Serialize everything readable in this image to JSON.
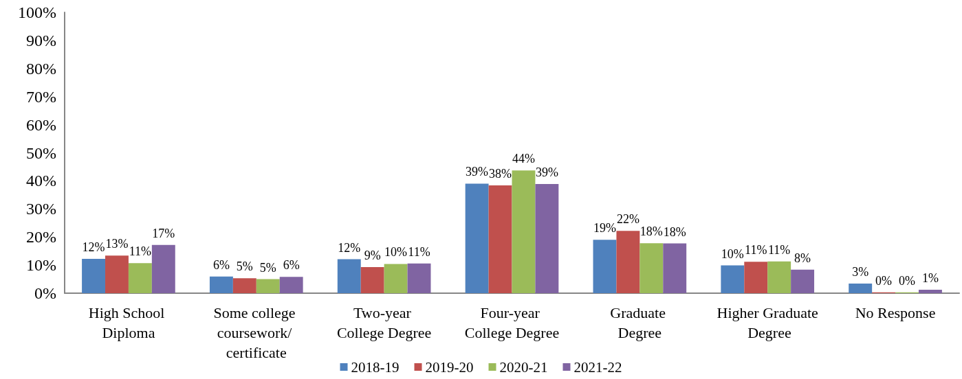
{
  "chart_data": {
    "type": "bar",
    "categories": [
      "High School Diploma",
      "Some college coursework/ certificate",
      "Two-year College Degree",
      "Four-year College Degree",
      "Graduate Degree",
      "Higher Graduate Degree",
      "No Response"
    ],
    "series": [
      {
        "name": "2018-19",
        "color": "#4f81bd",
        "values": [
          12.2,
          5.9,
          12.1,
          39.0,
          19.0,
          9.9,
          3.4
        ],
        "value_labels": [
          "12%",
          "6%",
          "12%",
          "39%",
          "19%",
          "10%",
          "3%"
        ]
      },
      {
        "name": "2019-20",
        "color": "#c0504d",
        "values": [
          13.4,
          5.3,
          9.3,
          38.4,
          22.2,
          11.2,
          0.3
        ],
        "value_labels": [
          "13%",
          "5%",
          "9%",
          "38%",
          "22%",
          "11%",
          "0%"
        ]
      },
      {
        "name": "2020-21",
        "color": "#9bbb59",
        "values": [
          10.7,
          5.0,
          10.4,
          43.7,
          17.8,
          11.3,
          0.3
        ],
        "value_labels": [
          "11%",
          "5%",
          "10%",
          "44%",
          "18%",
          "11%",
          "0%"
        ]
      },
      {
        "name": "2021-22",
        "color": "#8064a2",
        "values": [
          17.2,
          5.8,
          10.6,
          38.9,
          17.7,
          8.4,
          1.2
        ],
        "value_labels": [
          "17%",
          "6%",
          "11%",
          "39%",
          "18%",
          "8%",
          "1%"
        ]
      }
    ],
    "ylim": [
      0,
      100
    ],
    "yticks": [
      {
        "value": 0,
        "label": "0%"
      },
      {
        "value": 10,
        "label": "10%"
      },
      {
        "value": 20,
        "label": "20%"
      },
      {
        "value": 30,
        "label": "30%"
      },
      {
        "value": 40,
        "label": "40%"
      },
      {
        "value": 50,
        "label": "50%"
      },
      {
        "value": 60,
        "label": "60%"
      },
      {
        "value": 70,
        "label": "70%"
      },
      {
        "value": 80,
        "label": "80%"
      },
      {
        "value": 90,
        "label": "90%"
      },
      {
        "value": 100,
        "label": "100%"
      }
    ],
    "legend": "bottom"
  }
}
